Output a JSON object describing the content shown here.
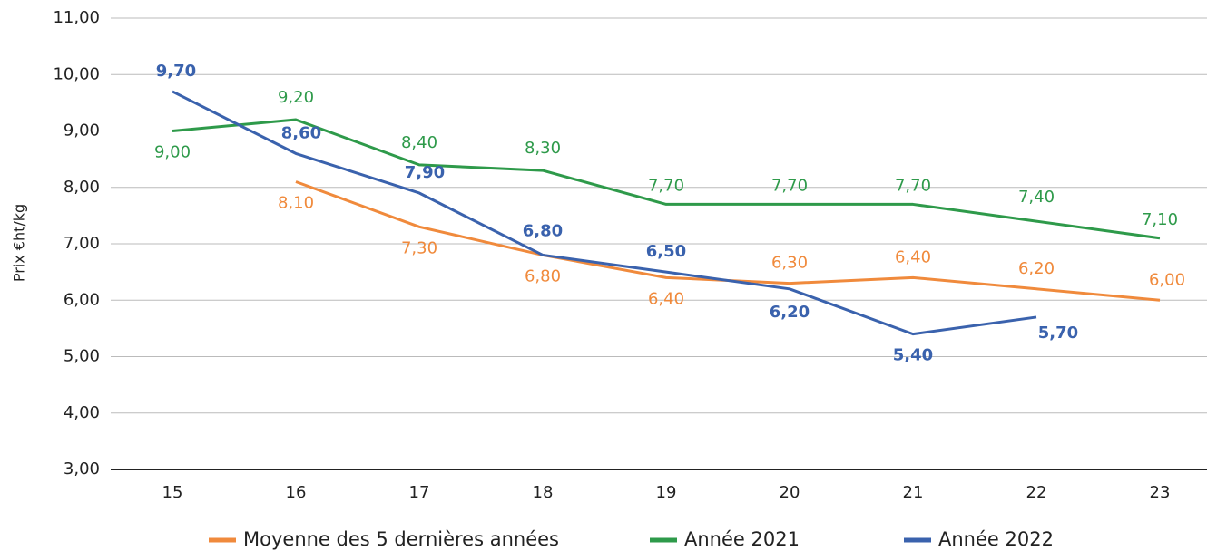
{
  "chart_data": {
    "type": "line",
    "y_label": "Prix €ht/kg",
    "categories": [
      "15",
      "16",
      "17",
      "18",
      "19",
      "20",
      "21",
      "22",
      "23"
    ],
    "series": [
      {
        "name": "Moyenne des 5 dernières années",
        "color": "#f08a3c",
        "values": [
          null,
          8.1,
          7.3,
          6.8,
          6.4,
          6.3,
          6.4,
          6.2,
          6.0
        ],
        "value_labels": [
          null,
          "8,10",
          "7,30",
          "6,80",
          "6,40",
          "6,30",
          "6,40",
          "6,20",
          "6,00"
        ]
      },
      {
        "name": "Année 2021",
        "color": "#2e9a4a",
        "values": [
          9.0,
          9.2,
          8.4,
          8.3,
          7.7,
          7.7,
          7.7,
          7.4,
          7.1
        ],
        "value_labels": [
          "9,00",
          "9,20",
          "8,40",
          "8,30",
          "7,70",
          "7,70",
          "7,70",
          "7,40",
          "7,10"
        ]
      },
      {
        "name": "Année 2022",
        "color": "#3a62ad",
        "values": [
          9.7,
          8.6,
          7.9,
          6.8,
          6.5,
          6.2,
          5.4,
          5.7,
          null
        ],
        "value_labels": [
          "9,70",
          "8,60",
          "7,90",
          "6,80",
          "6,50",
          "6,20",
          "5,40",
          "5,70",
          null
        ]
      }
    ],
    "ylim": [
      3,
      11
    ],
    "yticks": [
      {
        "value": 3,
        "label": "3,00"
      },
      {
        "value": 4,
        "label": "4,00"
      },
      {
        "value": 5,
        "label": "5,00"
      },
      {
        "value": 6,
        "label": "6,00"
      },
      {
        "value": 7,
        "label": "7,00"
      },
      {
        "value": 8,
        "label": "8,00"
      },
      {
        "value": 9,
        "label": "9,00"
      },
      {
        "value": 10,
        "label": "10,00"
      },
      {
        "value": 11,
        "label": "11,00"
      }
    ],
    "grid": true,
    "legend": "bottom"
  }
}
